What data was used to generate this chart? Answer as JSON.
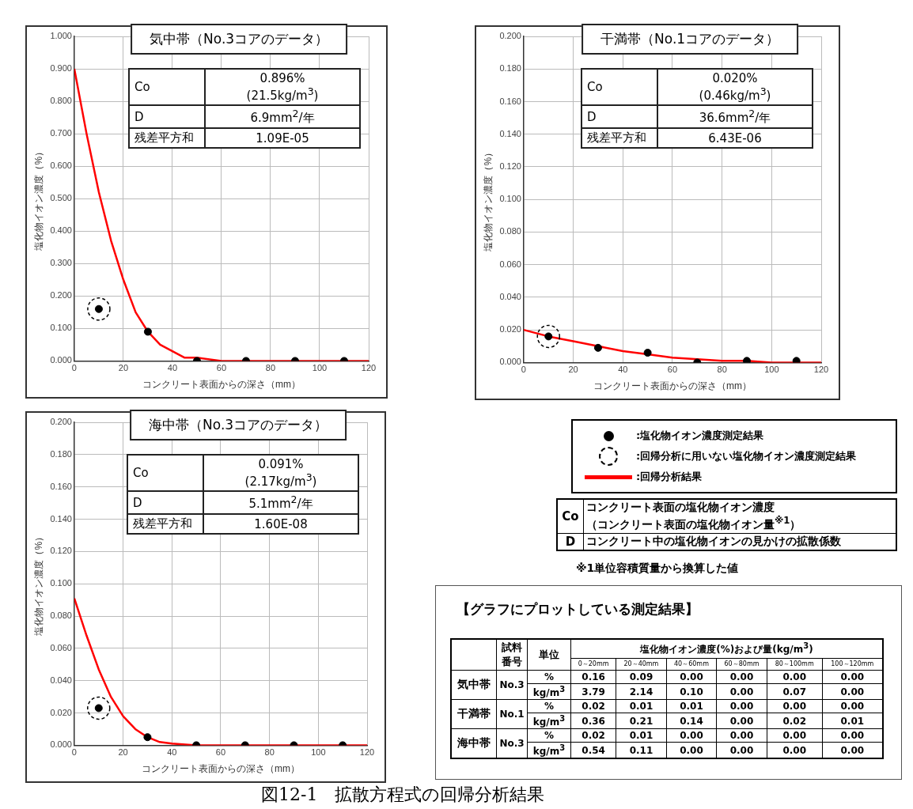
{
  "chart_data": [
    {
      "type": "scatter",
      "title": "気中帯（No.3コアのデータ）",
      "xlabel": "コンクリート表面からの深さ（mm）",
      "ylabel": "塩化物イオン濃度（%）",
      "xlim": [
        0,
        120
      ],
      "xticks": [
        0,
        20,
        40,
        60,
        80,
        100,
        120
      ],
      "ylim": [
        0,
        1
      ],
      "yticks": [
        {
          "value": 0,
          "label": "0.000"
        },
        {
          "value": 0.1,
          "label": "0.100"
        },
        {
          "value": 0.2,
          "label": "0.200"
        },
        {
          "value": 0.3,
          "label": "0.300"
        },
        {
          "value": 0.4,
          "label": "0.400"
        },
        {
          "value": 0.5,
          "label": "0.500"
        },
        {
          "value": 0.6,
          "label": "0.600"
        },
        {
          "value": 0.7,
          "label": "0.700"
        },
        {
          "value": 0.8,
          "label": "0.800"
        },
        {
          "value": 0.9,
          "label": "0.900"
        },
        {
          "value": 1,
          "label": "1.000"
        }
      ],
      "grid": true,
      "marker": "circle",
      "series": [
        {
          "type": "scatter",
          "color": "#000000",
          "x": [
            30,
            50,
            70,
            90,
            110
          ],
          "values": [
            0.09,
            0,
            0,
            0,
            0
          ]
        },
        {
          "type": "scatter",
          "color": "#000000",
          "line_style": "dashed",
          "x": [
            10
          ],
          "values": [
            0.16
          ]
        },
        {
          "type": "line",
          "color": "#ff0000",
          "marker": "none",
          "x": [
            0,
            5,
            10,
            15,
            20,
            25,
            30,
            35,
            40,
            45,
            50,
            60,
            70,
            80,
            90,
            100,
            110,
            120
          ],
          "values": [
            0.9,
            0.7,
            0.52,
            0.37,
            0.25,
            0.15,
            0.09,
            0.05,
            0.03,
            0.01,
            0.01,
            0,
            0,
            0,
            0,
            0,
            0,
            0
          ]
        }
      ],
      "annotations": [
        "Co",
        "0.896%",
        "(21.5kg/m$^{3}$)",
        "D",
        "6.9mm$^{2}$/年",
        "残差平方和",
        "1.09E-05"
      ]
    },
    {
      "type": "scatter",
      "title": "干満帯（No.1コアのデータ）",
      "xlabel": "コンクリート表面からの深さ（mm）",
      "ylabel": "塩化物イオン濃度（%）",
      "xlim": [
        0,
        120
      ],
      "xticks": [
        0,
        20,
        40,
        60,
        80,
        100,
        120
      ],
      "ylim": [
        0,
        0.2
      ],
      "yticks": [
        {
          "value": 0,
          "label": "0.000"
        },
        {
          "value": 0.02,
          "label": "0.020"
        },
        {
          "value": 0.04,
          "label": "0.040"
        },
        {
          "value": 0.06,
          "label": "0.060"
        },
        {
          "value": 0.08,
          "label": "0.080"
        },
        {
          "value": 0.1,
          "label": "0.100"
        },
        {
          "value": 0.12,
          "label": "0.120"
        },
        {
          "value": 0.14,
          "label": "0.140"
        },
        {
          "value": 0.16,
          "label": "0.160"
        },
        {
          "value": 0.18,
          "label": "0.180"
        },
        {
          "value": 0.2,
          "label": "0.200"
        }
      ],
      "grid": true,
      "marker": "circle",
      "legend": "bottom",
      "series": [
        {
          "type": "scatter",
          "name": ":塩化物イオン濃度測定結果",
          "color": "#000000",
          "x": [
            30,
            50,
            70,
            90,
            110
          ],
          "values": [
            0.009,
            0.006,
            0,
            0.001,
            0.001
          ]
        },
        {
          "type": "scatter",
          "name": ":回帰分析に用いない塩化物イオン濃度測定結果",
          "color": "#000000",
          "line_style": "dashed",
          "x": [
            10
          ],
          "values": [
            0.016
          ]
        },
        {
          "type": "line",
          "name": ":回帰分析結果",
          "color": "#ff0000",
          "marker": "none",
          "x": [
            0,
            10,
            20,
            30,
            40,
            50,
            60,
            70,
            80,
            90,
            100,
            110,
            120
          ],
          "values": [
            0.02,
            0.016,
            0.013,
            0.01,
            0.007,
            0.005,
            0.003,
            0.002,
            0.001,
            0.001,
            0,
            0,
            0
          ]
        }
      ],
      "annotations": [
        "Co",
        "0.020%",
        "(0.46kg/m$^{3}$)",
        "D",
        "36.6mm$^{2}$/年",
        "残差平方和",
        "6.43E-06"
      ]
    },
    {
      "type": "scatter",
      "title": "海中帯（No.3コアのデータ）",
      "xlabel": "コンクリート表面からの深さ（mm）",
      "ylabel": "塩化物イオン濃度（%）",
      "xlim": [
        0,
        120
      ],
      "xticks": [
        0,
        20,
        40,
        60,
        80,
        100,
        120
      ],
      "ylim": [
        0,
        0.2
      ],
      "yticks": [
        {
          "value": 0,
          "label": "0.000"
        },
        {
          "value": 0.02,
          "label": "0.020"
        },
        {
          "value": 0.04,
          "label": "0.040"
        },
        {
          "value": 0.06,
          "label": "0.060"
        },
        {
          "value": 0.08,
          "label": "0.080"
        },
        {
          "value": 0.1,
          "label": "0.100"
        },
        {
          "value": 0.12,
          "label": "0.120"
        },
        {
          "value": 0.14,
          "label": "0.140"
        },
        {
          "value": 0.16,
          "label": "0.160"
        },
        {
          "value": 0.18,
          "label": "0.180"
        },
        {
          "value": 0.2,
          "label": "0.200"
        }
      ],
      "grid": true,
      "marker": "circle",
      "series": [
        {
          "type": "scatter",
          "color": "#000000",
          "x": [
            30,
            50,
            70,
            90,
            110
          ],
          "values": [
            0.005,
            0,
            0,
            0,
            0
          ]
        },
        {
          "type": "scatter",
          "color": "#000000",
          "line_style": "dashed",
          "x": [
            10
          ],
          "values": [
            0.023
          ]
        },
        {
          "type": "line",
          "color": "#ff0000",
          "marker": "none",
          "x": [
            0,
            5,
            10,
            15,
            20,
            25,
            30,
            35,
            40,
            50,
            60,
            120
          ],
          "values": [
            0.091,
            0.068,
            0.047,
            0.03,
            0.018,
            0.01,
            0.005,
            0.002,
            0.001,
            0,
            0,
            0
          ]
        }
      ],
      "annotations": [
        "Co",
        "0.091%",
        "(2.17kg/m$^{3}$)",
        "D",
        "5.1mm$^{2}$/年",
        "残差平方和",
        "1.60E-08"
      ]
    },
    {
      "type": "other",
      "annotations": [
        "Co",
        "コンクリート表面の塩化物イオン濃度",
        "（コンクリート表面の塩化物イオン量$^{※1}$）",
        "D",
        "コンクリート中の塩化物イオンの見かけの拡散係数",
        "※1単位容積質量から換算した値",
        "【グラフにプロットしている測定結果】",
        "試料番号",
        "単位",
        "塩化物イオン濃度(%)および量(kg/m$^{3}$)",
        "0～20mm",
        "20～40mm",
        "40～60mm",
        "60～80mm",
        "80～100mm",
        "100～120mm",
        "気中帯",
        "No.3",
        "%",
        "0.16",
        "0.09",
        "0.00",
        "0.00",
        "0.00",
        "0.00",
        "kg/m$^{3}$",
        "3.79",
        "2.14",
        "0.10",
        "0.00",
        "0.07",
        "0.00",
        "干満帯",
        "No.1",
        "%",
        "0.02",
        "0.01",
        "0.01",
        "0.00",
        "0.00",
        "0.00",
        "kg/m$^{3}$",
        "0.36",
        "0.21",
        "0.14",
        "0.00",
        "0.02",
        "0.01",
        "海中帯",
        "No.3",
        "%",
        "0.02",
        "0.01",
        "0.00",
        "0.00",
        "0.00",
        "0.00",
        "kg/m$^{3}$",
        "0.54",
        "0.11",
        "0.00",
        "0.00",
        "0.00",
        "0.00",
        "図12-1　拡散方程式の回帰分析結果"
      ]
    }
  ]
}
